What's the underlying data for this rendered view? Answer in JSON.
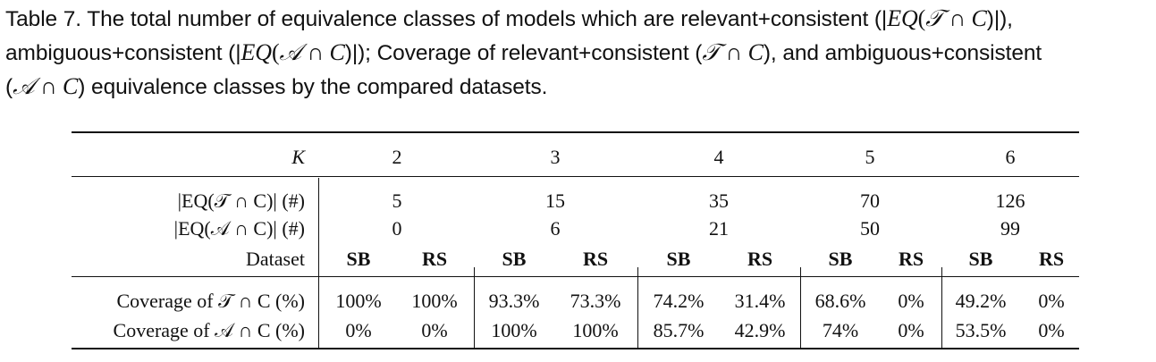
{
  "caption": {
    "line1_a": "Table 7.  The total number of equivalence classes of models which are relevant+consistent (|",
    "eq_T": "EQ",
    "paren_T_open": "(",
    "sym_T": "𝒯",
    "cap1": " ∩ ",
    "sym_C1": "C",
    "line1_b": ")|),",
    "line2_a": "ambiguous+consistent (|",
    "eq_A": "EQ",
    "paren_A_open": "(",
    "sym_A": "𝒜",
    "cap2": " ∩ ",
    "sym_C2": "C",
    "line2_b": ")|); Coverage of relevant+consistent (",
    "sym_T2": "𝒯",
    "cap3": " ∩ ",
    "sym_C3": "C",
    "line2_c": "), and ambiguous+consistent",
    "line3_a": "(",
    "sym_A2": "𝒜",
    "cap4": " ∩ ",
    "sym_C4": "C",
    "line3_b": ") equivalence classes by the compared datasets."
  },
  "table": {
    "k_label": "K",
    "k_values": [
      "2",
      "3",
      "4",
      "5",
      "6"
    ],
    "row_eq_t_label": "|EQ(𝒯 ∩ C)| (#)",
    "row_eq_t_values": [
      "5",
      "15",
      "35",
      "70",
      "126"
    ],
    "row_eq_a_label": "|EQ(𝒜 ∩ C)| (#)",
    "row_eq_a_values": [
      "0",
      "6",
      "21",
      "50",
      "99"
    ],
    "dataset_label": "Dataset",
    "dataset_values": [
      "SB",
      "RS",
      "SB",
      "RS",
      "SB",
      "RS",
      "SB",
      "RS",
      "SB",
      "RS"
    ],
    "cov_t_label": "Coverage of 𝒯 ∩ C (%)",
    "cov_t_values": [
      "100%",
      "100%",
      "93.3%",
      "73.3%",
      "74.2%",
      "31.4%",
      "68.6%",
      "0%",
      "49.2%",
      "0%"
    ],
    "cov_a_label": "Coverage of 𝒜 ∩ C (%)",
    "cov_a_values": [
      "0%",
      "0%",
      "100%",
      "100%",
      "85.7%",
      "42.9%",
      "74%",
      "0%",
      "53.5%",
      "0%"
    ]
  }
}
